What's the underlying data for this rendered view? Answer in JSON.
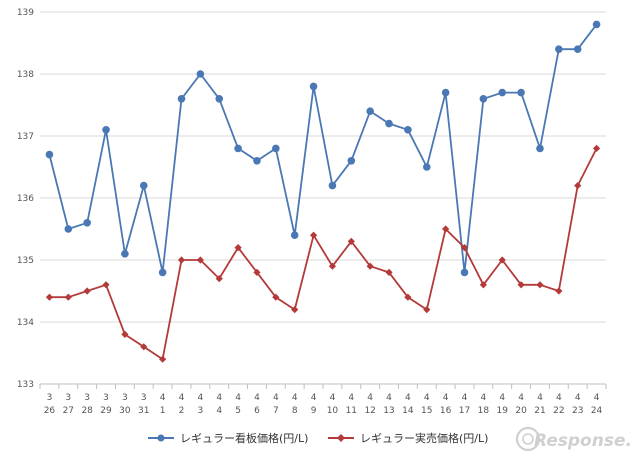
{
  "chart_data": {
    "type": "line",
    "title": "",
    "xlabel": "",
    "ylabel": "",
    "ylim": [
      133,
      139
    ],
    "yticks": [
      133,
      134,
      135,
      136,
      137,
      138,
      139
    ],
    "grid": true,
    "legend": "bottom",
    "categories": [
      {
        "month": "3",
        "day": "26"
      },
      {
        "month": "3",
        "day": "27"
      },
      {
        "month": "3",
        "day": "28"
      },
      {
        "month": "3",
        "day": "29"
      },
      {
        "month": "3",
        "day": "30"
      },
      {
        "month": "3",
        "day": "31"
      },
      {
        "month": "4",
        "day": "1"
      },
      {
        "month": "4",
        "day": "2"
      },
      {
        "month": "4",
        "day": "3"
      },
      {
        "month": "4",
        "day": "4"
      },
      {
        "month": "4",
        "day": "5"
      },
      {
        "month": "4",
        "day": "6"
      },
      {
        "month": "4",
        "day": "7"
      },
      {
        "month": "4",
        "day": "8"
      },
      {
        "month": "4",
        "day": "9"
      },
      {
        "month": "4",
        "day": "10"
      },
      {
        "month": "4",
        "day": "11"
      },
      {
        "month": "4",
        "day": "12"
      },
      {
        "month": "4",
        "day": "13"
      },
      {
        "month": "4",
        "day": "14"
      },
      {
        "month": "4",
        "day": "15"
      },
      {
        "month": "4",
        "day": "16"
      },
      {
        "month": "4",
        "day": "17"
      },
      {
        "month": "4",
        "day": "18"
      },
      {
        "month": "4",
        "day": "19"
      },
      {
        "month": "4",
        "day": "20"
      },
      {
        "month": "4",
        "day": "21"
      },
      {
        "month": "4",
        "day": "22"
      },
      {
        "month": "4",
        "day": "23"
      },
      {
        "month": "4",
        "day": "24"
      }
    ],
    "series": [
      {
        "name": "レギュラー看板価格(円/L)",
        "color": "#4a78b4",
        "marker": "circle",
        "values": [
          136.7,
          135.5,
          135.6,
          137.1,
          135.1,
          136.2,
          134.8,
          137.6,
          138.0,
          137.6,
          136.8,
          136.6,
          136.8,
          135.4,
          137.8,
          136.2,
          136.6,
          137.4,
          137.2,
          137.1,
          136.5,
          137.7,
          134.8,
          137.6,
          137.7,
          137.7,
          136.8,
          138.4,
          138.4,
          138.8
        ]
      },
      {
        "name": "レギュラー実売価格(円/L)",
        "color": "#b43a3a",
        "marker": "diamond",
        "values": [
          134.4,
          134.4,
          134.5,
          134.6,
          133.8,
          133.6,
          133.4,
          135.0,
          135.0,
          134.7,
          135.2,
          134.8,
          134.4,
          134.2,
          135.4,
          134.9,
          135.3,
          134.9,
          134.8,
          134.4,
          134.2,
          135.5,
          135.2,
          134.6,
          135.0,
          134.6,
          134.6,
          134.5,
          136.2,
          136.8
        ]
      }
    ]
  },
  "branding": {
    "logo_text": "Response."
  },
  "colors": {
    "grid": "#d9d9d9",
    "axis": "#bfbfbf"
  }
}
